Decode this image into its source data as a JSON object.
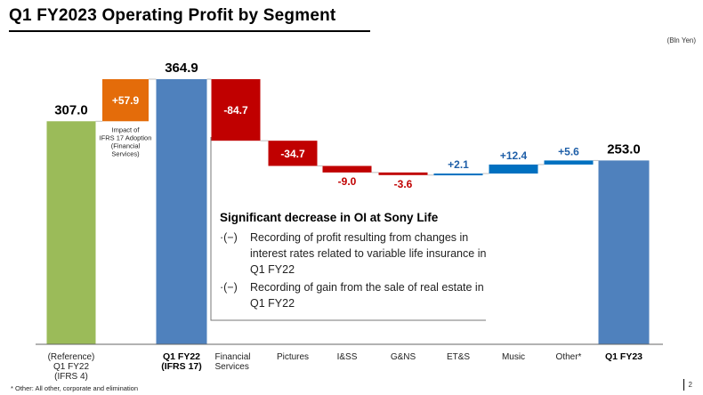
{
  "header": {
    "title": "Q1 FY2023 Operating Profit by Segment",
    "unit": "(Bln Yen)"
  },
  "chart_data": {
    "type": "waterfall",
    "title": "Q1 FY2023 Operating Profit by Segment",
    "unit": "(Bln Yen)",
    "ylim": [
      0,
      400
    ],
    "steps": [
      {
        "id": "reference",
        "kind": "total",
        "value": 307.0,
        "label": "307.0",
        "category": [
          "(Reference)",
          "Q1 FY22",
          "(IFRS 4)"
        ],
        "category_bold": false,
        "color": "#9bbb59"
      },
      {
        "id": "ifrs17",
        "kind": "delta",
        "value": 57.9,
        "label": "+57.9",
        "category": [],
        "category_bold": false,
        "color": "#e46c0a",
        "note": [
          "Impact of",
          "IFRS 17 Adoption",
          "(Financial",
          "Services)"
        ]
      },
      {
        "id": "q1fy22",
        "kind": "total",
        "value": 364.9,
        "label": "364.9",
        "category": [
          "Q1 FY22",
          "(IFRS 17)"
        ],
        "category_bold": true,
        "color": "#4f81bd"
      },
      {
        "id": "financial",
        "kind": "delta",
        "value": -84.7,
        "label": "-84.7",
        "category": [
          "Financial",
          "Services"
        ],
        "category_bold": false,
        "color": "#c00000"
      },
      {
        "id": "pictures",
        "kind": "delta",
        "value": -34.7,
        "label": "-34.7",
        "category": [
          "Pictures"
        ],
        "category_bold": false,
        "color": "#c00000"
      },
      {
        "id": "iss",
        "kind": "delta",
        "value": -9.0,
        "label": "-9.0",
        "category": [
          "I&SS"
        ],
        "category_bold": false,
        "color": "#c00000"
      },
      {
        "id": "gns",
        "kind": "delta",
        "value": -3.6,
        "label": "-3.6",
        "category": [
          "G&NS"
        ],
        "category_bold": false,
        "color": "#c00000"
      },
      {
        "id": "ets",
        "kind": "delta",
        "value": 2.1,
        "label": "+2.1",
        "category": [
          "ET&S"
        ],
        "category_bold": false,
        "color": "#0070c0"
      },
      {
        "id": "music",
        "kind": "delta",
        "value": 12.4,
        "label": "+12.4",
        "category": [
          "Music"
        ],
        "category_bold": false,
        "color": "#0070c0"
      },
      {
        "id": "other",
        "kind": "delta",
        "value": 5.6,
        "label": "+5.6",
        "category": [
          "Other*"
        ],
        "category_bold": false,
        "color": "#0070c0"
      },
      {
        "id": "q1fy23",
        "kind": "total",
        "value": 253.0,
        "label": "253.0",
        "category": [
          "Q1 FY23"
        ],
        "category_bold": true,
        "color": "#4f81bd"
      }
    ]
  },
  "annotation": {
    "heading": "Significant decrease in OI at Sony Life",
    "bullets": [
      {
        "mark": "·(−)",
        "text": "Recording of profit resulting from changes in interest rates related to variable life insurance in Q1 FY22"
      },
      {
        "mark": "·(−)",
        "text": "Recording of gain from the sale of real estate in Q1 FY22"
      }
    ]
  },
  "footer": {
    "footnote": "* Other: All other, corporate and elimination",
    "page": "2"
  }
}
